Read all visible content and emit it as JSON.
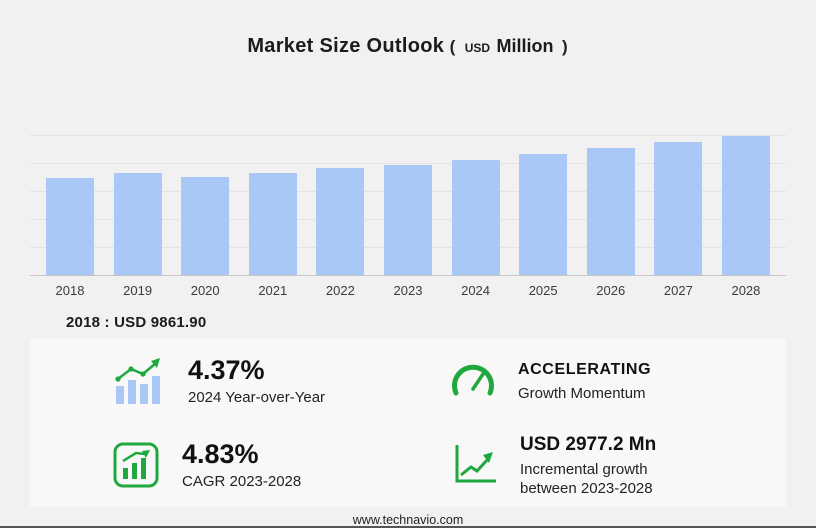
{
  "header": {
    "title": "Market Size Outlook",
    "paren_open": "(",
    "currency": "USD",
    "unit": "Million",
    "paren_close": ")"
  },
  "chart_data": {
    "type": "bar",
    "title": "Market Size Outlook (USD Million)",
    "categories": [
      "2018",
      "2019",
      "2020",
      "2021",
      "2022",
      "2023",
      "2024",
      "2025",
      "2026",
      "2027",
      "2028"
    ],
    "values": [
      9861.9,
      10350,
      9950,
      10400,
      10900,
      11193.3,
      11682.4,
      12300,
      12890,
      13520,
      14170.5
    ],
    "xlabel": "",
    "ylabel": "",
    "ylim": [
      0,
      17000
    ],
    "grid": true,
    "legend": false,
    "bar_color": "#a9c8f5",
    "annotation": "2018 : USD 9861.90"
  },
  "annotation": {
    "text": "2018 : USD  9861.90"
  },
  "stats": [
    {
      "id": "yoy",
      "icon": "bar-trend-icon",
      "value": "4.37%",
      "label": "2024 Year-over-Year"
    },
    {
      "id": "momentum",
      "icon": "speedometer-icon",
      "value": "ACCELERATING",
      "label": "Growth Momentum"
    },
    {
      "id": "cagr",
      "icon": "chart-growth-icon",
      "value": "4.83%",
      "label": "CAGR 2023-2028"
    },
    {
      "id": "incremental",
      "icon": "line-growth-icon",
      "value": "USD 2977.2 Mn",
      "label": "Incremental growth between 2023-2028"
    }
  ],
  "footer": {
    "url": "www.technavio.com"
  },
  "colors": {
    "bg": "#f1f1f1",
    "panel": "#f8f8f8",
    "bar": "#a9c8f5",
    "green": "#1fa83d",
    "text": "#1b1b1b",
    "grid": "#e3e3e3",
    "axis": "#c6c6c6"
  }
}
